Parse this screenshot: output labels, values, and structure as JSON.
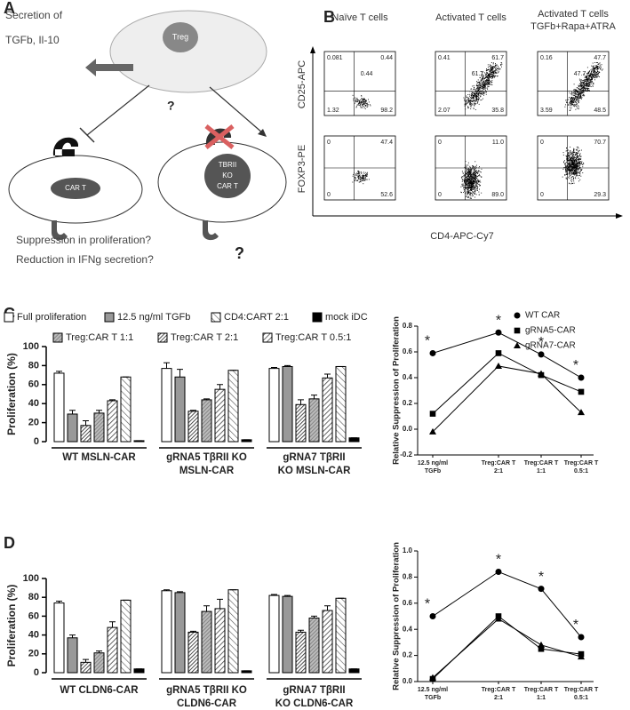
{
  "panel_labels": [
    "A",
    "B",
    "C",
    "D"
  ],
  "diagram": {
    "secretion": [
      "Secretion of",
      "TGFb, Il-10"
    ],
    "treg": "Treg",
    "question_top": "?",
    "car_t": "CAR T",
    "ko_car_t": [
      "TBRII",
      "KO",
      "CAR T"
    ],
    "questions": [
      "Suppression in proliferation?",
      "Reduction in IFNg secretion?"
    ],
    "question_bottom": "?"
  },
  "flow": {
    "columns": [
      [
        "Naïve T cells"
      ],
      [
        "Activated T cells"
      ],
      [
        "Activated T cells",
        "TGFb+Rapa+ATRA"
      ]
    ],
    "y_labels": [
      "CD25-APC",
      "FOXP3-PE"
    ],
    "x_label": "CD4-APC-Cy7",
    "rows": [
      [
        {
          "ul": "0.081",
          "ur": "0.44",
          "ll": "1.32",
          "lr": "98.2",
          "center": "0.44"
        },
        {
          "ul": "0.41",
          "ur": "61.7",
          "ll": "2.07",
          "lr": "35.8",
          "center": "61.7"
        },
        {
          "ul": "0.16",
          "ur": "47.7",
          "ll": "3.59",
          "lr": "48.5",
          "center": "47.7"
        }
      ],
      [
        {
          "ul": "0",
          "ur": "47.4",
          "ll": "0",
          "lr": "52.6"
        },
        {
          "ul": "0",
          "ur": "11.0",
          "ll": "0",
          "lr": "89.0"
        },
        {
          "ul": "0",
          "ur": "70.7",
          "ll": "0",
          "lr": "29.3"
        }
      ]
    ]
  },
  "chart_data": [
    {
      "type": "bar",
      "ylabel": "Proliferation (%)",
      "ylim": [
        0,
        100
      ],
      "yticks": [
        0,
        20,
        40,
        60,
        80,
        100
      ],
      "categories": [
        [
          "WT MSLN-CAR"
        ],
        [
          "gRNA5 TβRII KO",
          "MSLN-CAR"
        ],
        [
          "gRNA7 TβRII",
          "KO MSLN-CAR"
        ]
      ],
      "series": [
        {
          "name": "Full proliferation",
          "color": "#ffffff",
          "values": [
            72,
            77,
            77
          ],
          "errors": [
            2,
            6,
            1
          ]
        },
        {
          "name": "12.5 ng/ml TGFb",
          "color": "#999999",
          "values": [
            29,
            68,
            79
          ],
          "errors": [
            4,
            8,
            1
          ]
        },
        {
          "name": "Treg:CAR T 2:1",
          "color": "#222222",
          "hatch": "dense",
          "values": [
            17,
            32,
            39
          ],
          "errors": [
            5,
            1,
            5
          ]
        },
        {
          "name": "Treg:CAR T 1:1",
          "color": "#777777",
          "hatch": "dense",
          "values": [
            30,
            44,
            45
          ],
          "errors": [
            3,
            1,
            4
          ]
        },
        {
          "name": "Treg:CAR T 0.5:1",
          "color": "#444444",
          "hatch": "medium",
          "values": [
            43,
            55,
            67
          ],
          "errors": [
            1,
            5,
            4
          ]
        },
        {
          "name": "CD4:CART 2:1",
          "color": "#555555",
          "hatch": "wide",
          "values": [
            68,
            75,
            79
          ],
          "errors": [
            0,
            0,
            0
          ]
        },
        {
          "name": "mock iDC",
          "color": "#000000",
          "values": [
            1,
            2,
            4
          ],
          "errors": [
            0,
            0,
            0
          ]
        }
      ]
    },
    {
      "type": "line",
      "ylabel": "Relative Suppression of Proliferation",
      "ylim": [
        -0.2,
        0.8
      ],
      "yticks": [
        -0.2,
        {
          "value": 0,
          "label": "0.0"
        },
        0.2,
        0.4,
        0.6,
        0.8
      ],
      "categories": [
        [
          "12.5 ng/ml",
          "TGFb"
        ],
        [
          "Treg:CAR T",
          "2:1"
        ],
        [
          "Treg:CAR T",
          "1:1"
        ],
        [
          "Treg:CAR T",
          "0.5:1"
        ]
      ],
      "annotations": [
        "*",
        "*",
        "*",
        "*"
      ],
      "series": [
        {
          "name": "WT CAR",
          "color": "#000000",
          "marker": "circle",
          "values": [
            0.59,
            0.75,
            0.58,
            0.4
          ]
        },
        {
          "name": "gRNA5-CAR",
          "color": "#000000",
          "marker": "square",
          "values": [
            0.12,
            0.59,
            0.42,
            0.29
          ]
        },
        {
          "name": "gRNA7-CAR",
          "color": "#000000",
          "marker": "triangle",
          "values": [
            -0.02,
            0.49,
            0.43,
            0.13
          ]
        }
      ]
    },
    {
      "type": "bar",
      "ylabel": "Proliferation (%)",
      "ylim": [
        0,
        100
      ],
      "yticks": [
        0,
        20,
        40,
        60,
        80,
        100
      ],
      "categories": [
        [
          "WT CLDN6-CAR"
        ],
        [
          "gRNA5 TβRII KO",
          "CLDN6-CAR"
        ],
        [
          "gRNA7 TβRII",
          "KO CLDN6-CAR"
        ]
      ],
      "series": [
        {
          "color": "#ffffff",
          "values": [
            74,
            87,
            82
          ],
          "errors": [
            2,
            1,
            1
          ]
        },
        {
          "color": "#999999",
          "values": [
            37,
            85,
            81
          ],
          "errors": [
            3,
            1,
            1
          ]
        },
        {
          "color": "#222222",
          "hatch": "dense",
          "values": [
            11,
            43,
            43
          ],
          "errors": [
            3,
            1,
            2
          ]
        },
        {
          "color": "#777777",
          "hatch": "dense",
          "values": [
            21,
            65,
            58
          ],
          "errors": [
            2,
            6,
            2
          ]
        },
        {
          "color": "#444444",
          "hatch": "medium",
          "values": [
            48,
            68,
            66
          ],
          "errors": [
            6,
            10,
            5
          ]
        },
        {
          "color": "#555555",
          "hatch": "wide",
          "values": [
            77,
            88,
            79
          ],
          "errors": [
            0,
            0,
            0
          ]
        },
        {
          "color": "#000000",
          "values": [
            4,
            2,
            4
          ],
          "errors": [
            0,
            0,
            0
          ]
        }
      ]
    },
    {
      "type": "line",
      "ylabel": "Relative Suppression of Proliferation",
      "ylim": [
        0,
        1
      ],
      "yticks": [
        {
          "value": 0,
          "label": "0.0"
        },
        0.2,
        0.4,
        0.6,
        0.8,
        {
          "value": 1,
          "label": "1.0"
        }
      ],
      "categories": [
        [
          "12.5 ng/ml",
          "TGFb"
        ],
        [
          "Treg:CAR T",
          "2:1"
        ],
        [
          "Treg:CAR T",
          "1:1"
        ],
        [
          "Treg:CAR T",
          "0.5:1"
        ]
      ],
      "annotations": [
        "*",
        "*",
        "*",
        "*"
      ],
      "series": [
        {
          "color": "#000000",
          "marker": "circle",
          "values": [
            0.5,
            0.84,
            0.71,
            0.34
          ]
        },
        {
          "color": "#000000",
          "marker": "square",
          "values": [
            0.02,
            0.5,
            0.25,
            0.21
          ]
        },
        {
          "color": "#000000",
          "marker": "triangle",
          "values": [
            0.03,
            0.48,
            0.28,
            0.19
          ]
        }
      ]
    }
  ]
}
